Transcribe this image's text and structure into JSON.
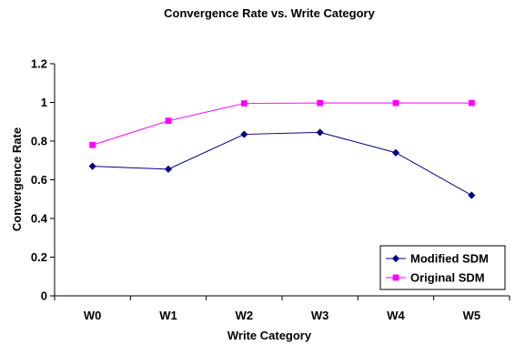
{
  "chart_data": {
    "type": "line",
    "title": "Convergence Rate vs. Write Category",
    "xlabel": "Write Category",
    "ylabel": "Convergence Rate",
    "categories": [
      "W0",
      "W1",
      "W2",
      "W3",
      "W4",
      "W5"
    ],
    "ylim": [
      0,
      1.2
    ],
    "yticks": [
      "0",
      "0.2",
      "0.4",
      "0.6",
      "0.8",
      "1",
      "1.2"
    ],
    "grid": false,
    "legend_position": "bottom-right",
    "series": [
      {
        "name": "Modified SDM",
        "color": "#000080",
        "marker": "diamond",
        "values": [
          0.67,
          0.655,
          0.835,
          0.845,
          0.74,
          0.52
        ]
      },
      {
        "name": "Original SDM",
        "color": "#ff00ff",
        "marker": "square",
        "values": [
          0.78,
          0.905,
          0.995,
          0.997,
          0.997,
          0.997
        ]
      }
    ]
  }
}
